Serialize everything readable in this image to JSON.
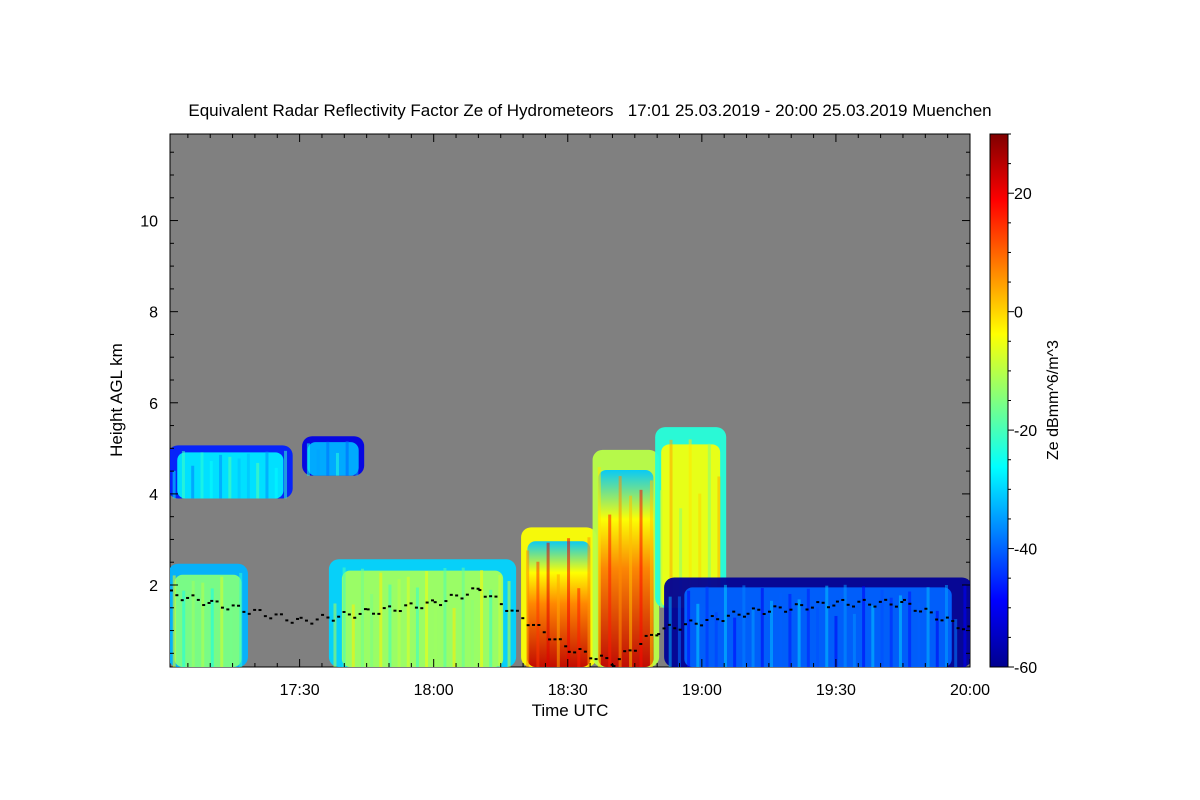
{
  "chart_data": {
    "type": "heatmap",
    "title": "Equivalent Radar Reflectivity Factor Ze of Hydrometeors   17:01 25.03.2019 - 20:00 25.03.2019 Muenchen",
    "xlabel": "Time UTC",
    "ylabel": "Height AGL km",
    "xlim": [
      "17:01",
      "20:00"
    ],
    "ylim": [
      0.2,
      11.9
    ],
    "x_ticks": [
      "17:30",
      "18:00",
      "18:30",
      "19:00",
      "19:30",
      "20:00"
    ],
    "y_ticks": [
      2,
      4,
      6,
      8,
      10
    ],
    "colorbar": {
      "label": "Ze dBmm^6/m^3",
      "range": [
        -60,
        30
      ],
      "ticks": [
        20,
        0,
        -20,
        -40,
        -60
      ],
      "colormap": "jet"
    },
    "background_color": "#808080",
    "echo_regions": [
      {
        "time_start": "17:01",
        "time_end": "17:28",
        "base_km": 3.9,
        "top_km": 5.0,
        "ze_dbz": -28
      },
      {
        "time_start": "17:31",
        "time_end": "17:44",
        "base_km": 4.4,
        "top_km": 5.2,
        "ze_dbz": -33
      },
      {
        "time_start": "17:01",
        "time_end": "17:18",
        "base_km": 0.2,
        "top_km": 2.4,
        "ze_dbz": -15
      },
      {
        "time_start": "17:37",
        "time_end": "18:18",
        "base_km": 0.2,
        "top_km": 2.5,
        "ze_dbz": -12
      },
      {
        "time_start": "18:20",
        "time_end": "18:36",
        "base_km": 0.2,
        "top_km": 3.2,
        "ze_dbz": 14
      },
      {
        "time_start": "18:36",
        "time_end": "18:50",
        "base_km": 0.2,
        "top_km": 4.9,
        "ze_dbz": 8
      },
      {
        "time_start": "18:50",
        "time_end": "19:05",
        "base_km": 1.5,
        "top_km": 5.4,
        "ze_dbz": -5
      },
      {
        "time_start": "18:52",
        "time_end": "20:00",
        "base_km": 0.2,
        "top_km": 2.1,
        "ze_dbz": -40
      }
    ],
    "melting_layer_km": [
      {
        "time": "17:01",
        "height": 1.8
      },
      {
        "time": "17:10",
        "height": 1.6
      },
      {
        "time": "17:30",
        "height": 1.2
      },
      {
        "time": "17:45",
        "height": 1.4
      },
      {
        "time": "18:00",
        "height": 1.6
      },
      {
        "time": "18:10",
        "height": 1.9
      },
      {
        "time": "18:30",
        "height": 0.6
      },
      {
        "time": "18:40",
        "height": 0.3
      },
      {
        "time": "18:50",
        "height": 1.0
      },
      {
        "time": "19:10",
        "height": 1.4
      },
      {
        "time": "19:30",
        "height": 1.6
      },
      {
        "time": "19:45",
        "height": 1.6
      },
      {
        "time": "20:00",
        "height": 1.0
      }
    ],
    "grid": false,
    "legend": "colorbar-right"
  }
}
